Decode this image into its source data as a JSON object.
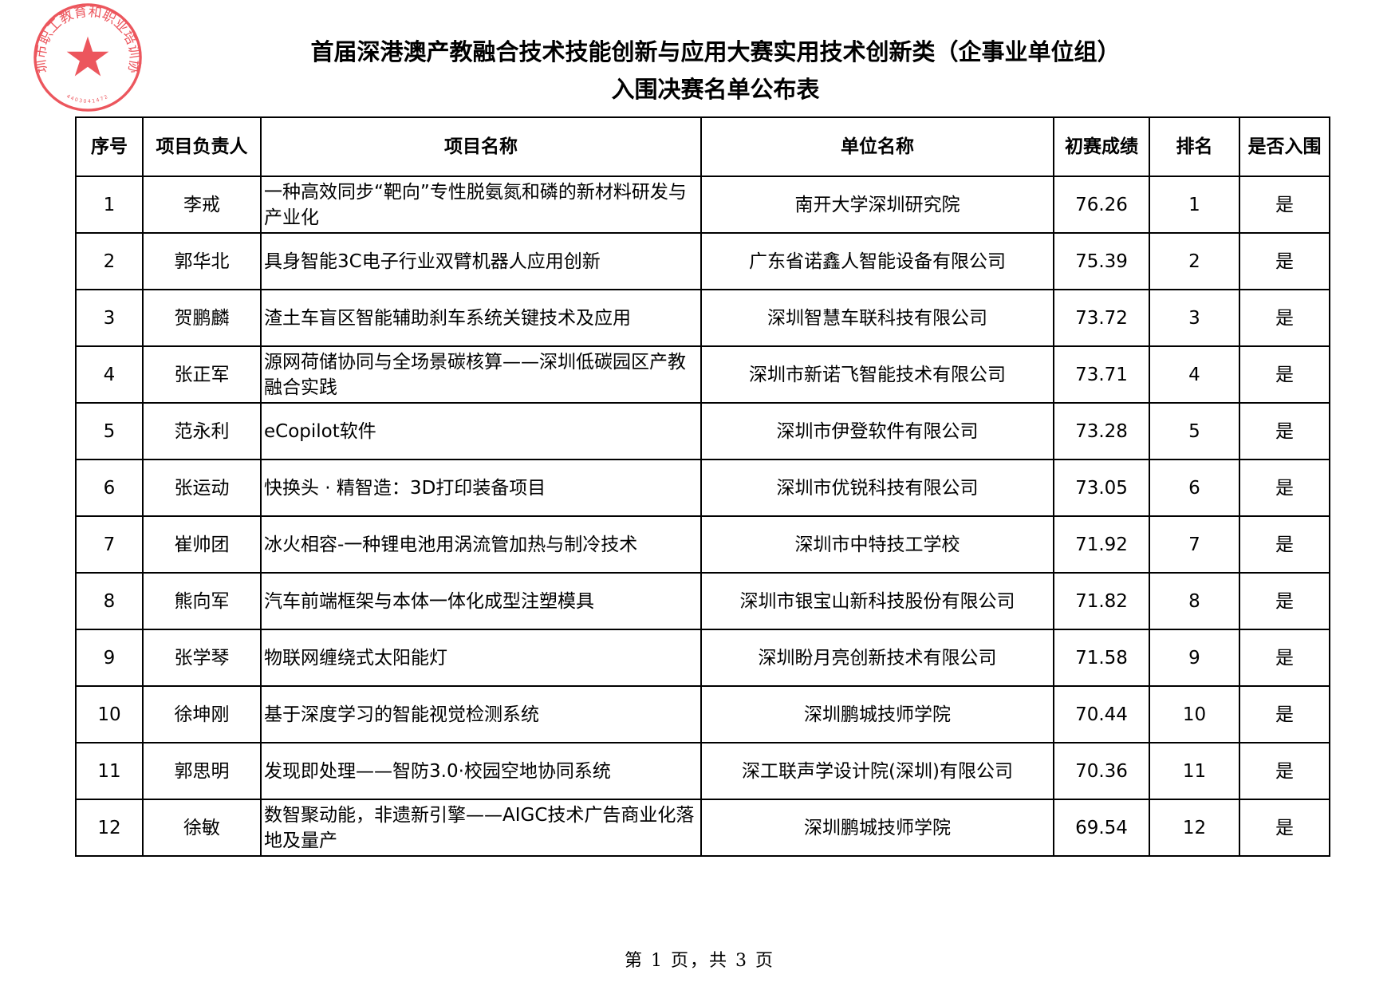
{
  "document": {
    "title_line1": "首届深港澳产教融合技术技能创新与应用大赛实用技术创新类（企事业单位组）",
    "title_line2": "入围决赛名单公布表",
    "footer": "第 1 页，共 3 页"
  },
  "stamp": {
    "text": "深圳市职工教育和职业培训协会",
    "code": "4403041472",
    "color": "#e8313a"
  },
  "table": {
    "headers": [
      "序号",
      "项目负责人",
      "项目名称",
      "单位名称",
      "初赛成绩",
      "排名",
      "是否入围"
    ],
    "rows": [
      [
        "1",
        "李戒",
        "一种高效同步“靶向”专性脱氨氮和磷的新材料研发与产业化",
        "南开大学深圳研究院",
        "76.26",
        "1",
        "是"
      ],
      [
        "2",
        "郭华北",
        "具身智能3C电子行业双臂机器人应用创新",
        "广东省诺鑫人智能设备有限公司",
        "75.39",
        "2",
        "是"
      ],
      [
        "3",
        "贺鹏麟",
        "渣土车盲区智能辅助刹车系统关键技术及应用",
        "深圳智慧车联科技有限公司",
        "73.72",
        "3",
        "是"
      ],
      [
        "4",
        "张正军",
        "源网荷储协同与全场景碳核算——深圳低碳园区产教融合实践",
        "深圳市新诺飞智能技术有限公司",
        "73.71",
        "4",
        "是"
      ],
      [
        "5",
        "范永利",
        "eCopilot软件",
        "深圳市伊登软件有限公司",
        "73.28",
        "5",
        "是"
      ],
      [
        "6",
        "张运动",
        "快换头 · 精智造：3D打印装备项目",
        "深圳市优锐科技有限公司",
        "73.05",
        "6",
        "是"
      ],
      [
        "7",
        "崔帅团",
        "冰火相容-一种锂电池用涡流管加热与制冷技术",
        "深圳市中特技工学校",
        "71.92",
        "7",
        "是"
      ],
      [
        "8",
        "熊向军",
        "汽车前端框架与本体一体化成型注塑模具",
        "深圳市银宝山新科技股份有限公司",
        "71.82",
        "8",
        "是"
      ],
      [
        "9",
        "张学琴",
        "物联网缠绕式太阳能灯",
        "深圳盼月亮创新技术有限公司",
        "71.58",
        "9",
        "是"
      ],
      [
        "10",
        "徐坤刚",
        "基于深度学习的智能视觉检测系统",
        "深圳鹏城技师学院",
        "70.44",
        "10",
        "是"
      ],
      [
        "11",
        "郭思明",
        "发现即处理——智防3.0·校园空地协同系统",
        "深工联声学设计院(深圳)有限公司",
        "70.36",
        "11",
        "是"
      ],
      [
        "12",
        "徐敏",
        "数智聚动能，非遗新引擎——AIGC技术广告商业化落地及量产",
        "深圳鹏城技师学院",
        "69.54",
        "12",
        "是"
      ]
    ]
  }
}
